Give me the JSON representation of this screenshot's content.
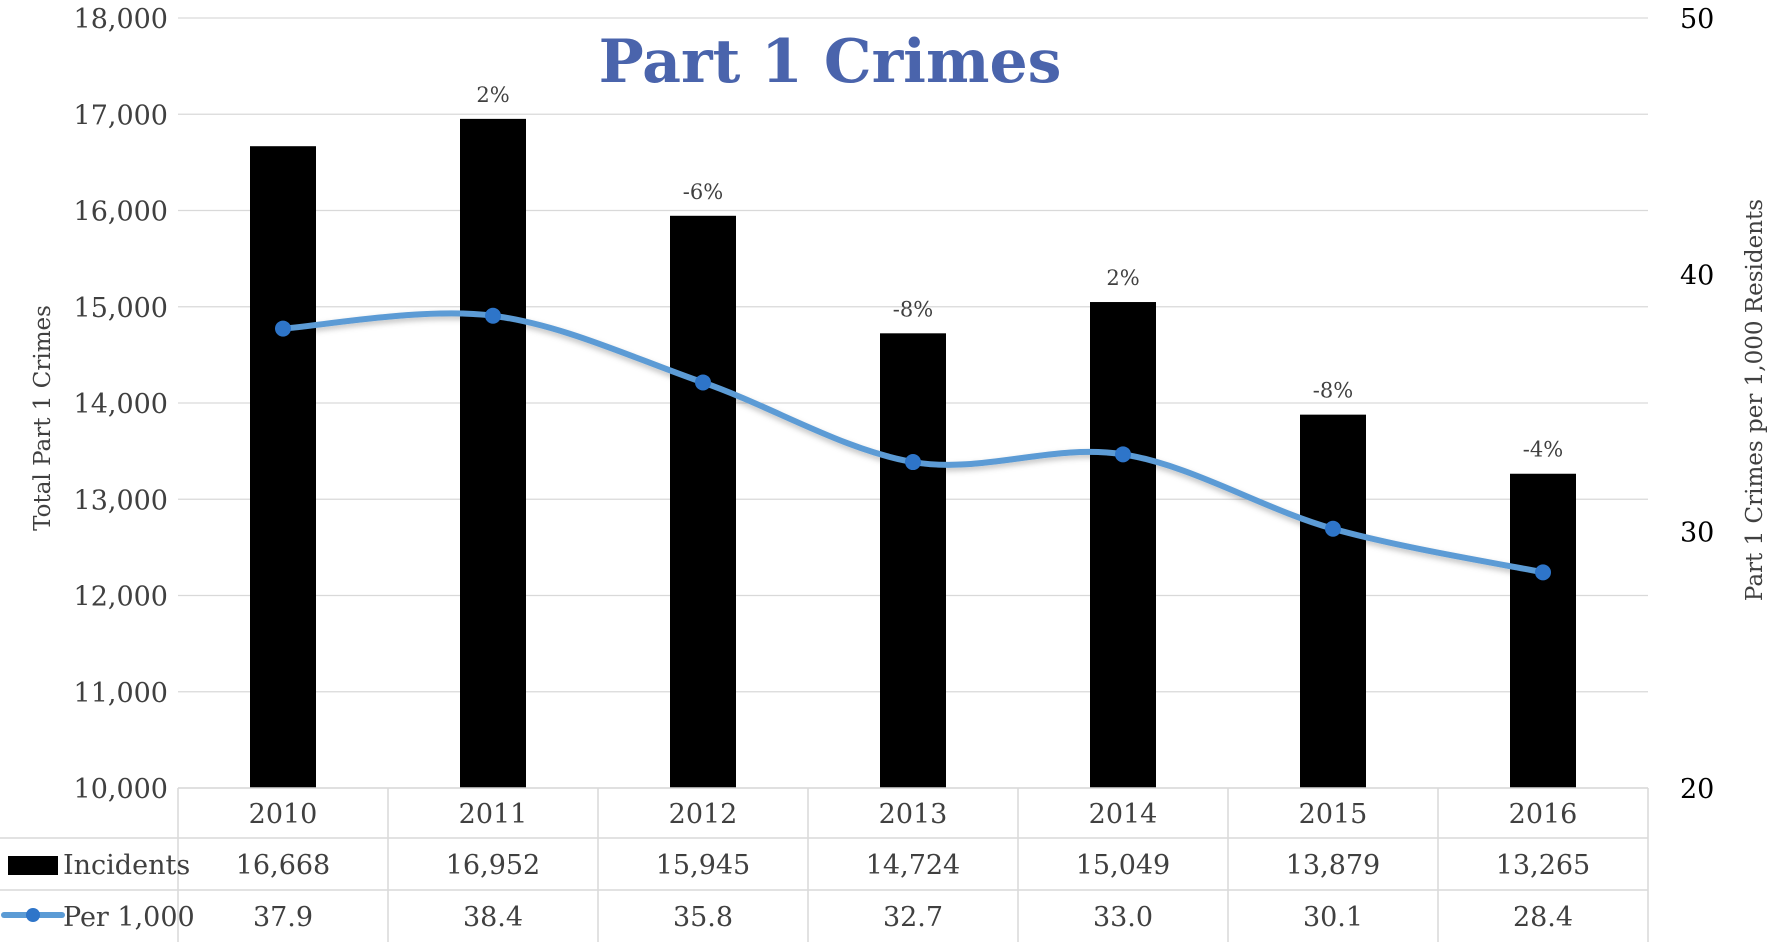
{
  "chart_data": {
    "type": "bar",
    "title": "Part 1 Crimes",
    "categories": [
      "2010",
      "2011",
      "2012",
      "2013",
      "2014",
      "2015",
      "2016"
    ],
    "series": [
      {
        "name": "Incidents",
        "type": "bar",
        "axis": "left",
        "values": [
          16668,
          16952,
          15945,
          14724,
          15049,
          13879,
          13265
        ],
        "table_values": [
          "16,668",
          "16,952",
          "15,945",
          "14,724",
          "15,049",
          "13,879",
          "13,265"
        ],
        "color": "#000000"
      },
      {
        "name": "Per 1,000",
        "type": "line",
        "axis": "right",
        "values": [
          37.9,
          38.4,
          35.8,
          32.7,
          33.0,
          30.1,
          28.4
        ],
        "table_values": [
          "37.9",
          "38.4",
          "35.8",
          "32.7",
          "33.0",
          "30.1",
          "28.4"
        ],
        "color": "#5b9bd5",
        "marker_color": "#2e75c9",
        "smooth": true
      }
    ],
    "annotations": [
      "",
      "2%",
      "-6%",
      "-8%",
      "2%",
      "-8%",
      "-4%"
    ],
    "ylabel": "Total Part 1 Crimes",
    "y2label": "Part 1 Crimes per 1,000 Residents",
    "ylim": [
      10000,
      18000
    ],
    "y2lim": [
      20,
      50
    ],
    "yticks": [
      "10,000",
      "11,000",
      "12,000",
      "13,000",
      "14,000",
      "15,000",
      "16,000",
      "17,000",
      "18,000"
    ],
    "y2ticks": [
      "20",
      "30",
      "40",
      "50"
    ],
    "title_color": "#4a64ac",
    "grid": true,
    "legend": "data-table"
  }
}
